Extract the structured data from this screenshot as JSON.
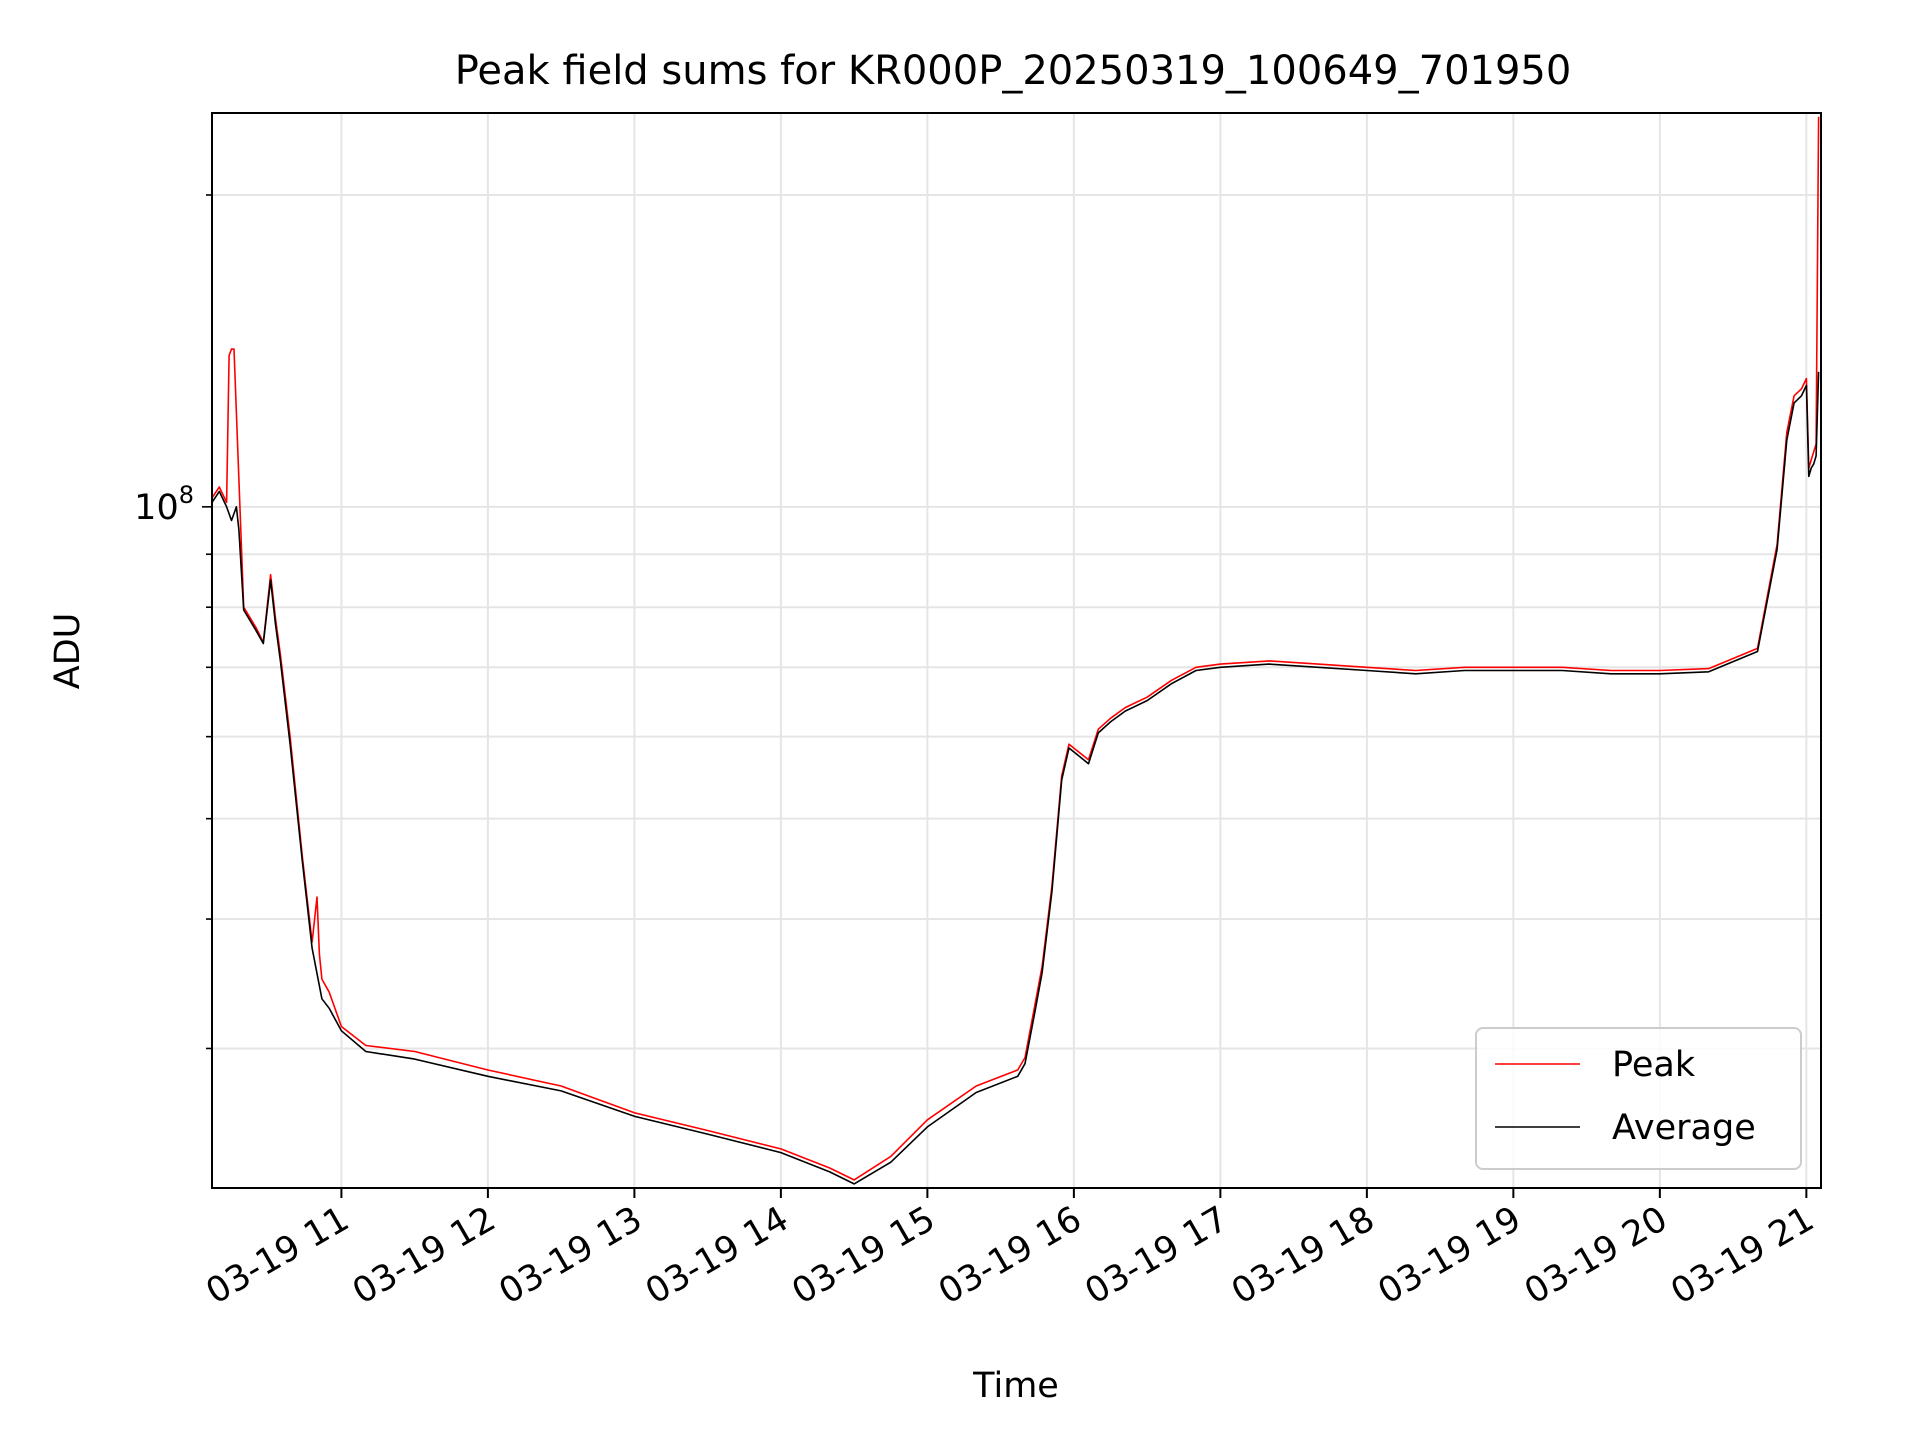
{
  "chart_data": {
    "type": "line",
    "title": "Peak field sums for KR000P_20250319_100649_701950",
    "xlabel": "Time",
    "ylabel": "ADU",
    "yscale": "log",
    "ylim": [
      22000000,
      240000000
    ],
    "xlim": [
      "03-19 10:07",
      "03-19 21:06"
    ],
    "x_ticks": [
      "03-19 11",
      "03-19 12",
      "03-19 13",
      "03-19 14",
      "03-19 15",
      "03-19 16",
      "03-19 17",
      "03-19 18",
      "03-19 19",
      "03-19 20",
      "03-19 21"
    ],
    "y_ticks": [
      {
        "value": 100000000,
        "base": "10",
        "exp": "8"
      }
    ],
    "grid": true,
    "legend_position": "lower right",
    "series": [
      {
        "name": "Peak",
        "color": "#ff0000",
        "x": [
          "03-19 10:07",
          "03-19 10:10",
          "03-19 10:13",
          "03-19 10:14",
          "03-19 10:15",
          "03-19 10:16",
          "03-19 10:20",
          "03-19 10:25",
          "03-19 10:28",
          "03-19 10:31",
          "03-19 10:33",
          "03-19 10:35",
          "03-19 10:39",
          "03-19 10:44",
          "03-19 10:48",
          "03-19 10:50",
          "03-19 10:51",
          "03-19 10:52",
          "03-19 10:55",
          "03-19 11:00",
          "03-19 11:10",
          "03-19 11:30",
          "03-19 12:00",
          "03-19 12:30",
          "03-19 13:00",
          "03-19 13:30",
          "03-19 14:00",
          "03-19 14:20",
          "03-19 14:30",
          "03-19 14:45",
          "03-19 15:00",
          "03-19 15:20",
          "03-19 15:37",
          "03-19 15:40",
          "03-19 15:44",
          "03-19 15:47",
          "03-19 15:51",
          "03-19 15:55",
          "03-19 15:58",
          "03-19 16:06",
          "03-19 16:10",
          "03-19 16:15",
          "03-19 16:21",
          "03-19 16:30",
          "03-19 16:40",
          "03-19 16:50",
          "03-19 17:00",
          "03-19 17:20",
          "03-19 17:40",
          "03-19 18:00",
          "03-19 18:20",
          "03-19 18:40",
          "03-19 19:00",
          "03-19 19:20",
          "03-19 19:40",
          "03-19 20:00",
          "03-19 20:20",
          "03-19 20:40",
          "03-19 20:48",
          "03-19 20:52",
          "03-19 20:55",
          "03-19 20:58",
          "03-19 21:00",
          "03-19 21:01",
          "03-19 21:02",
          "03-19 21:03",
          "03-19 21:04",
          "03-19 21:05"
        ],
        "y": [
          102000000,
          104500000,
          101000000,
          140000000,
          142000000,
          142000000,
          80000000,
          76500000,
          74000000,
          86000000,
          78000000,
          72000000,
          60000000,
          46000000,
          38000000,
          42000000,
          37000000,
          35000000,
          34000000,
          31500000,
          30200000,
          29800000,
          28600000,
          27600000,
          26000000,
          25000000,
          24000000,
          23000000,
          22400000,
          23600000,
          25600000,
          27600000,
          28600000,
          29400000,
          33000000,
          36000000,
          43000000,
          55000000,
          59000000,
          57000000,
          61000000,
          62500000,
          64000000,
          65500000,
          68000000,
          70000000,
          70500000,
          71000000,
          70500000,
          70000000,
          69500000,
          70000000,
          70000000,
          70000000,
          69500000,
          69500000,
          69800000,
          73000000,
          92000000,
          118000000,
          128000000,
          130000000,
          133000000,
          109000000,
          111000000,
          113000000,
          115000000,
          238000000
        ]
      },
      {
        "name": "Average",
        "color": "#000000",
        "x": [
          "03-19 10:07",
          "03-19 10:10",
          "03-19 10:13",
          "03-19 10:15",
          "03-19 10:17",
          "03-19 10:18",
          "03-19 10:20",
          "03-19 10:25",
          "03-19 10:28",
          "03-19 10:31",
          "03-19 10:33",
          "03-19 10:35",
          "03-19 10:39",
          "03-19 10:44",
          "03-19 10:48",
          "03-19 10:52",
          "03-19 10:55",
          "03-19 11:00",
          "03-19 11:10",
          "03-19 11:30",
          "03-19 12:00",
          "03-19 12:30",
          "03-19 13:00",
          "03-19 13:30",
          "03-19 14:00",
          "03-19 14:20",
          "03-19 14:30",
          "03-19 14:45",
          "03-19 15:00",
          "03-19 15:20",
          "03-19 15:37",
          "03-19 15:40",
          "03-19 15:44",
          "03-19 15:47",
          "03-19 15:51",
          "03-19 15:55",
          "03-19 15:58",
          "03-19 16:06",
          "03-19 16:10",
          "03-19 16:15",
          "03-19 16:21",
          "03-19 16:30",
          "03-19 16:40",
          "03-19 16:50",
          "03-19 17:00",
          "03-19 17:20",
          "03-19 17:40",
          "03-19 18:00",
          "03-19 18:20",
          "03-19 18:40",
          "03-19 19:00",
          "03-19 19:20",
          "03-19 19:40",
          "03-19 20:00",
          "03-19 20:20",
          "03-19 20:40",
          "03-19 20:48",
          "03-19 20:52",
          "03-19 20:55",
          "03-19 20:58",
          "03-19 21:00",
          "03-19 21:01",
          "03-19 21:02",
          "03-19 21:03",
          "03-19 21:04",
          "03-19 21:05"
        ],
        "y": [
          101000000,
          103500000,
          100000000,
          97000000,
          100000000,
          95000000,
          79500000,
          76000000,
          73800000,
          85000000,
          77000000,
          71000000,
          59000000,
          45500000,
          37500000,
          33500000,
          32800000,
          31200000,
          29800000,
          29300000,
          28200000,
          27300000,
          25800000,
          24800000,
          23800000,
          22800000,
          22200000,
          23300000,
          25200000,
          27200000,
          28200000,
          29000000,
          32500000,
          35500000,
          42500000,
          54500000,
          58500000,
          56500000,
          60500000,
          62000000,
          63500000,
          65000000,
          67500000,
          69500000,
          70000000,
          70500000,
          70000000,
          69500000,
          69000000,
          69500000,
          69500000,
          69500000,
          69000000,
          69000000,
          69300000,
          72500000,
          91000000,
          116000000,
          126000000,
          128000000,
          131000000,
          107000000,
          109000000,
          110000000,
          112000000,
          135000000
        ]
      }
    ]
  }
}
